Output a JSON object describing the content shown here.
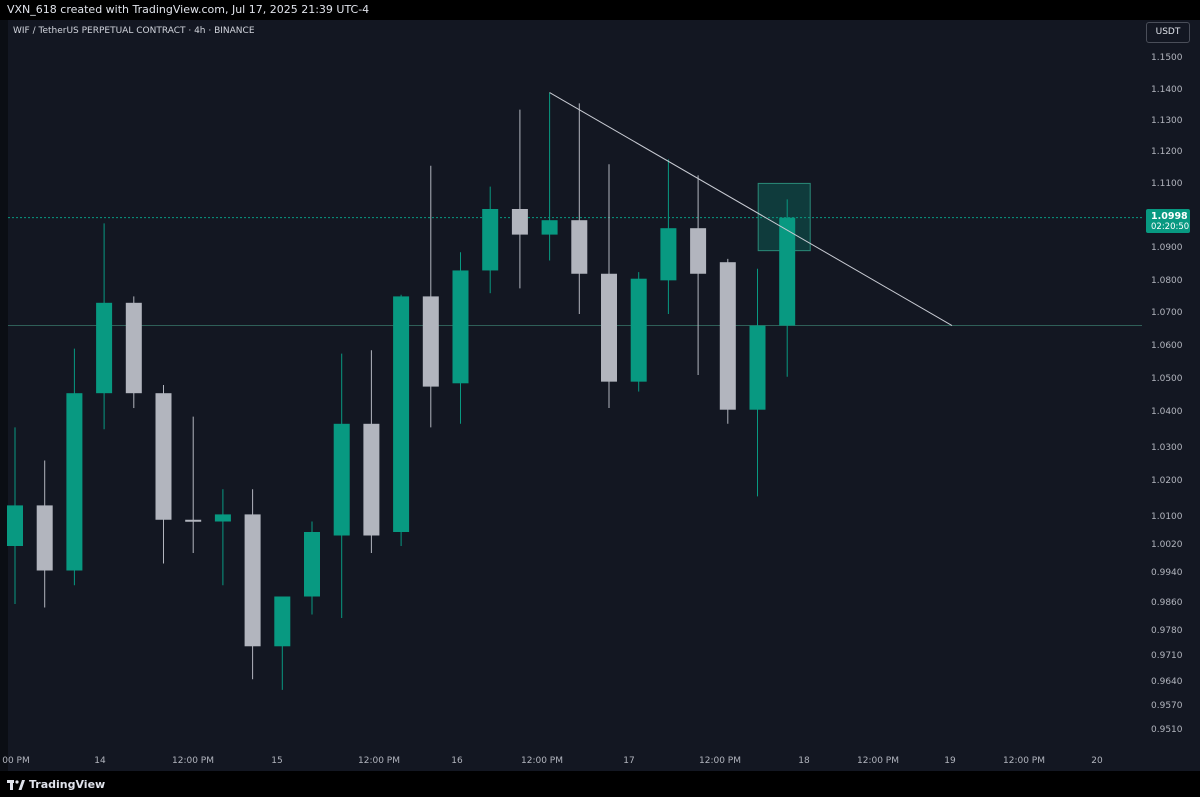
{
  "header": {
    "attribution": "VXN_618 created with TradingView.com, Jul 17, 2025 21:39 UTC-4"
  },
  "symbol_label": "WIF / TetherUS PERPETUAL CONTRACT · 4h · BINANCE",
  "currency": "USDT",
  "last_price": {
    "price": "1.0998",
    "countdown": "02:20:50"
  },
  "footer": {
    "logo_text": "TradingView"
  },
  "colors": {
    "up": "#089981",
    "down": "#b2b5be",
    "background": "#131722",
    "trendline": "#c8cbd3"
  },
  "chart_data": {
    "type": "candlestick",
    "title": "",
    "timeframe": "4h",
    "y_ticks": [
      "1.1500",
      "1.1400",
      "1.1300",
      "1.1200",
      "1.1100",
      "1.0900",
      "1.0800",
      "1.0700",
      "1.0600",
      "1.0500",
      "1.0400",
      "1.0300",
      "1.0200",
      "1.0100",
      "1.0020",
      "0.9940",
      "0.9860",
      "0.9780",
      "0.9710",
      "0.9640",
      "0.9570",
      "0.9510"
    ],
    "x_ticks": [
      "00 PM",
      "14",
      "12:00 PM",
      "15",
      "12:00 PM",
      "16",
      "12:00 PM",
      "17",
      "12:00 PM",
      "18",
      "12:00 PM",
      "19",
      "12:00 PM",
      "20"
    ],
    "candles": [
      {
        "open": 1.002,
        "high": 1.036,
        "low": 0.986,
        "close": 1.0135
      },
      {
        "open": 1.0135,
        "high": 1.0265,
        "low": 0.985,
        "close": 0.995
      },
      {
        "open": 0.995,
        "high": 1.0595,
        "low": 0.991,
        "close": 1.046
      },
      {
        "open": 1.046,
        "high": 1.098,
        "low": 1.0355,
        "close": 1.0735
      },
      {
        "open": 1.0735,
        "high": 1.0755,
        "low": 1.0415,
        "close": 1.046
      },
      {
        "open": 1.046,
        "high": 1.0485,
        "low": 0.997,
        "close": 1.0095
      },
      {
        "open": 1.0095,
        "high": 1.039,
        "low": 1.0,
        "close": 1.009
      },
      {
        "open": 1.009,
        "high": 1.018,
        "low": 0.991,
        "close": 1.011
      },
      {
        "open": 1.011,
        "high": 1.018,
        "low": 0.965,
        "close": 0.974
      },
      {
        "open": 0.974,
        "high": 0.988,
        "low": 0.962,
        "close": 0.988
      },
      {
        "open": 0.988,
        "high": 1.009,
        "low": 0.983,
        "close": 1.006
      },
      {
        "open": 1.005,
        "high": 1.058,
        "low": 0.982,
        "close": 1.037
      },
      {
        "open": 1.037,
        "high": 1.059,
        "low": 1.0,
        "close": 1.005
      },
      {
        "open": 1.006,
        "high": 1.076,
        "low": 1.002,
        "close": 1.0755
      },
      {
        "open": 1.0755,
        "high": 1.116,
        "low": 1.036,
        "close": 1.048
      },
      {
        "open": 1.049,
        "high": 1.089,
        "low": 1.037,
        "close": 1.0835
      },
      {
        "open": 1.0835,
        "high": 1.1095,
        "low": 1.0765,
        "close": 1.1025
      },
      {
        "open": 1.1025,
        "high": 1.134,
        "low": 1.078,
        "close": 1.0945
      },
      {
        "open": 1.0945,
        "high": 1.1395,
        "low": 1.0865,
        "close": 1.099
      },
      {
        "open": 1.099,
        "high": 1.136,
        "low": 1.07,
        "close": 1.0825
      },
      {
        "open": 1.0825,
        "high": 1.1165,
        "low": 1.0415,
        "close": 1.0495
      },
      {
        "open": 1.0495,
        "high": 1.083,
        "low": 1.0465,
        "close": 1.081
      },
      {
        "open": 1.0805,
        "high": 1.118,
        "low": 1.07,
        "close": 1.0965
      },
      {
        "open": 1.0965,
        "high": 1.113,
        "low": 1.0515,
        "close": 1.0825
      },
      {
        "open": 1.086,
        "high": 1.087,
        "low": 1.037,
        "close": 1.041
      },
      {
        "open": 1.041,
        "high": 1.084,
        "low": 1.016,
        "close": 1.0665
      },
      {
        "open": 1.0665,
        "high": 1.1055,
        "low": 1.051,
        "close": 1.0998
      }
    ],
    "trendline": {
      "from": {
        "candle": 18,
        "price": 1.1395
      },
      "to_price": 1.0665
    },
    "horizontal_lines": [
      {
        "price": 1.0998,
        "style": "dotted"
      },
      {
        "price": 1.0665,
        "style": "solid"
      }
    ],
    "highlight_box": {
      "price_top": 1.1105,
      "price_bottom": 1.0895
    },
    "grid": false,
    "legend": "none"
  }
}
